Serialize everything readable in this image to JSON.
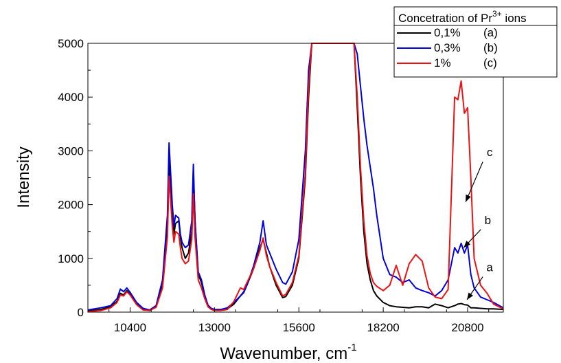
{
  "chart_data": {
    "type": "line",
    "title": "",
    "xlabel": "Wavenumber, cm",
    "xlabel_sup": "-1",
    "ylabel": "Intensity",
    "xlim": [
      9100,
      21900
    ],
    "ylim": [
      0,
      5000
    ],
    "xticks": [
      10400,
      13000,
      15600,
      18200,
      20800
    ],
    "yticks": [
      0,
      1000,
      2000,
      3000,
      4000,
      5000
    ],
    "grid": false,
    "legend": {
      "placement": "top-right",
      "title": "Concetration of Pr",
      "title_sup": "3+",
      "title_suffix": " ions"
    },
    "series": [
      {
        "name": "0,1%",
        "tag": "(a)",
        "color": "#000000",
        "x": [
          9100,
          9500,
          9800,
          10000,
          10100,
          10200,
          10300,
          10400,
          10600,
          10800,
          11000,
          11200,
          11400,
          11550,
          11600,
          11700,
          11750,
          11800,
          11900,
          11950,
          12000,
          12100,
          12200,
          12300,
          12350,
          12400,
          12500,
          12600,
          12700,
          12800,
          12900,
          13000,
          13200,
          13400,
          13600,
          13800,
          13900,
          14000,
          14200,
          14400,
          14500,
          14600,
          14700,
          14900,
          15100,
          15200,
          15400,
          15600,
          15800,
          15900,
          16000,
          17300,
          17400,
          17500,
          17600,
          17700,
          17800,
          17900,
          18000,
          18200,
          18400,
          18600,
          18800,
          19000,
          19200,
          19400,
          19600,
          19800,
          20000,
          20200,
          20400,
          20500,
          20600,
          20700,
          20800,
          20900,
          21000,
          21200,
          21400,
          21600,
          21900
        ],
        "y": [
          20,
          50,
          100,
          200,
          350,
          320,
          400,
          330,
          150,
          50,
          30,
          100,
          500,
          1500,
          2800,
          1900,
          1450,
          1650,
          1700,
          1400,
          1200,
          1000,
          1100,
          1500,
          2650,
          1700,
          700,
          550,
          300,
          120,
          60,
          40,
          40,
          60,
          150,
          300,
          380,
          500,
          800,
          1200,
          1350,
          1100,
          850,
          500,
          270,
          290,
          500,
          1000,
          2500,
          4000,
          5000,
          5000,
          3800,
          2500,
          1500,
          900,
          600,
          400,
          300,
          180,
          120,
          100,
          90,
          80,
          100,
          100,
          80,
          150,
          120,
          80,
          120,
          150,
          160,
          140,
          130,
          80,
          80,
          70,
          60,
          60,
          50
        ]
      },
      {
        "name": "0,3%",
        "tag": "(b)",
        "color": "#0000dd",
        "x": [
          9100,
          9500,
          9800,
          10000,
          10100,
          10200,
          10300,
          10400,
          10600,
          10800,
          11000,
          11200,
          11400,
          11550,
          11600,
          11700,
          11750,
          11800,
          11900,
          11950,
          12000,
          12100,
          12200,
          12300,
          12350,
          12400,
          12500,
          12600,
          12700,
          12800,
          12900,
          13000,
          13200,
          13400,
          13600,
          13800,
          13900,
          14000,
          14200,
          14400,
          14500,
          14600,
          14700,
          14900,
          15100,
          15200,
          15400,
          15600,
          15800,
          15900,
          16000,
          17300,
          17400,
          17500,
          17600,
          17700,
          17800,
          17900,
          18000,
          18200,
          18400,
          18600,
          18800,
          19000,
          19200,
          19400,
          19600,
          19800,
          20000,
          20200,
          20400,
          20500,
          20600,
          20700,
          20800,
          20900,
          21000,
          21200,
          21400,
          21600,
          21900
        ],
        "y": [
          40,
          80,
          120,
          250,
          430,
          380,
          450,
          370,
          180,
          70,
          40,
          120,
          600,
          1800,
          3150,
          2000,
          1600,
          1800,
          1750,
          1450,
          1300,
          1200,
          1250,
          1700,
          2750,
          1700,
          750,
          600,
          320,
          130,
          70,
          50,
          50,
          80,
          180,
          300,
          360,
          500,
          850,
          1300,
          1700,
          1250,
          1100,
          800,
          550,
          520,
          750,
          1350,
          3000,
          4500,
          5000,
          5000,
          4800,
          4200,
          3600,
          3100,
          2700,
          2300,
          1800,
          1000,
          700,
          650,
          550,
          600,
          450,
          400,
          360,
          300,
          400,
          600,
          1200,
          1100,
          1280,
          1100,
          1250,
          700,
          450,
          280,
          230,
          180,
          80
        ]
      },
      {
        "name": "1%",
        "tag": "(c)",
        "color": "#ee1111",
        "x": [
          9100,
          9500,
          9800,
          10000,
          10100,
          10200,
          10300,
          10400,
          10600,
          10800,
          11000,
          11200,
          11400,
          11550,
          11600,
          11700,
          11750,
          11800,
          11900,
          11950,
          12000,
          12100,
          12200,
          12300,
          12350,
          12400,
          12500,
          12600,
          12700,
          12800,
          12900,
          13000,
          13200,
          13400,
          13600,
          13800,
          13900,
          14000,
          14200,
          14400,
          14500,
          14600,
          14700,
          14900,
          15100,
          15200,
          15400,
          15600,
          15800,
          15900,
          16000,
          17300,
          17400,
          17500,
          17600,
          17700,
          17800,
          17900,
          18000,
          18200,
          18400,
          18600,
          18800,
          19000,
          19200,
          19400,
          19600,
          19800,
          20000,
          20200,
          20400,
          20500,
          20600,
          20700,
          20800,
          20900,
          21000,
          21200,
          21400,
          21600,
          21900
        ],
        "y": [
          10,
          30,
          80,
          180,
          320,
          300,
          380,
          320,
          140,
          40,
          30,
          90,
          450,
          1400,
          2530,
          1600,
          1300,
          1500,
          1450,
          1200,
          1000,
          900,
          950,
          1350,
          2200,
          1400,
          600,
          450,
          250,
          100,
          50,
          30,
          30,
          50,
          200,
          450,
          420,
          550,
          800,
          1150,
          1380,
          1050,
          850,
          550,
          300,
          330,
          550,
          1050,
          2600,
          4200,
          5000,
          5000,
          4000,
          2700,
          1700,
          1050,
          720,
          550,
          480,
          400,
          500,
          870,
          500,
          900,
          1070,
          950,
          450,
          280,
          250,
          420,
          4000,
          3950,
          4300,
          3700,
          3800,
          2500,
          1000,
          500,
          350,
          150,
          60
        ]
      }
    ],
    "annotations": [
      {
        "text": "c",
        "x": 21480,
        "y": 2900,
        "arrow_to": [
          20740,
          2050
        ]
      },
      {
        "text": "b",
        "x": 21420,
        "y": 1640,
        "arrow_to": [
          20680,
          1200
        ]
      },
      {
        "text": "a",
        "x": 21480,
        "y": 760,
        "arrow_to": [
          20780,
          230
        ]
      }
    ]
  }
}
